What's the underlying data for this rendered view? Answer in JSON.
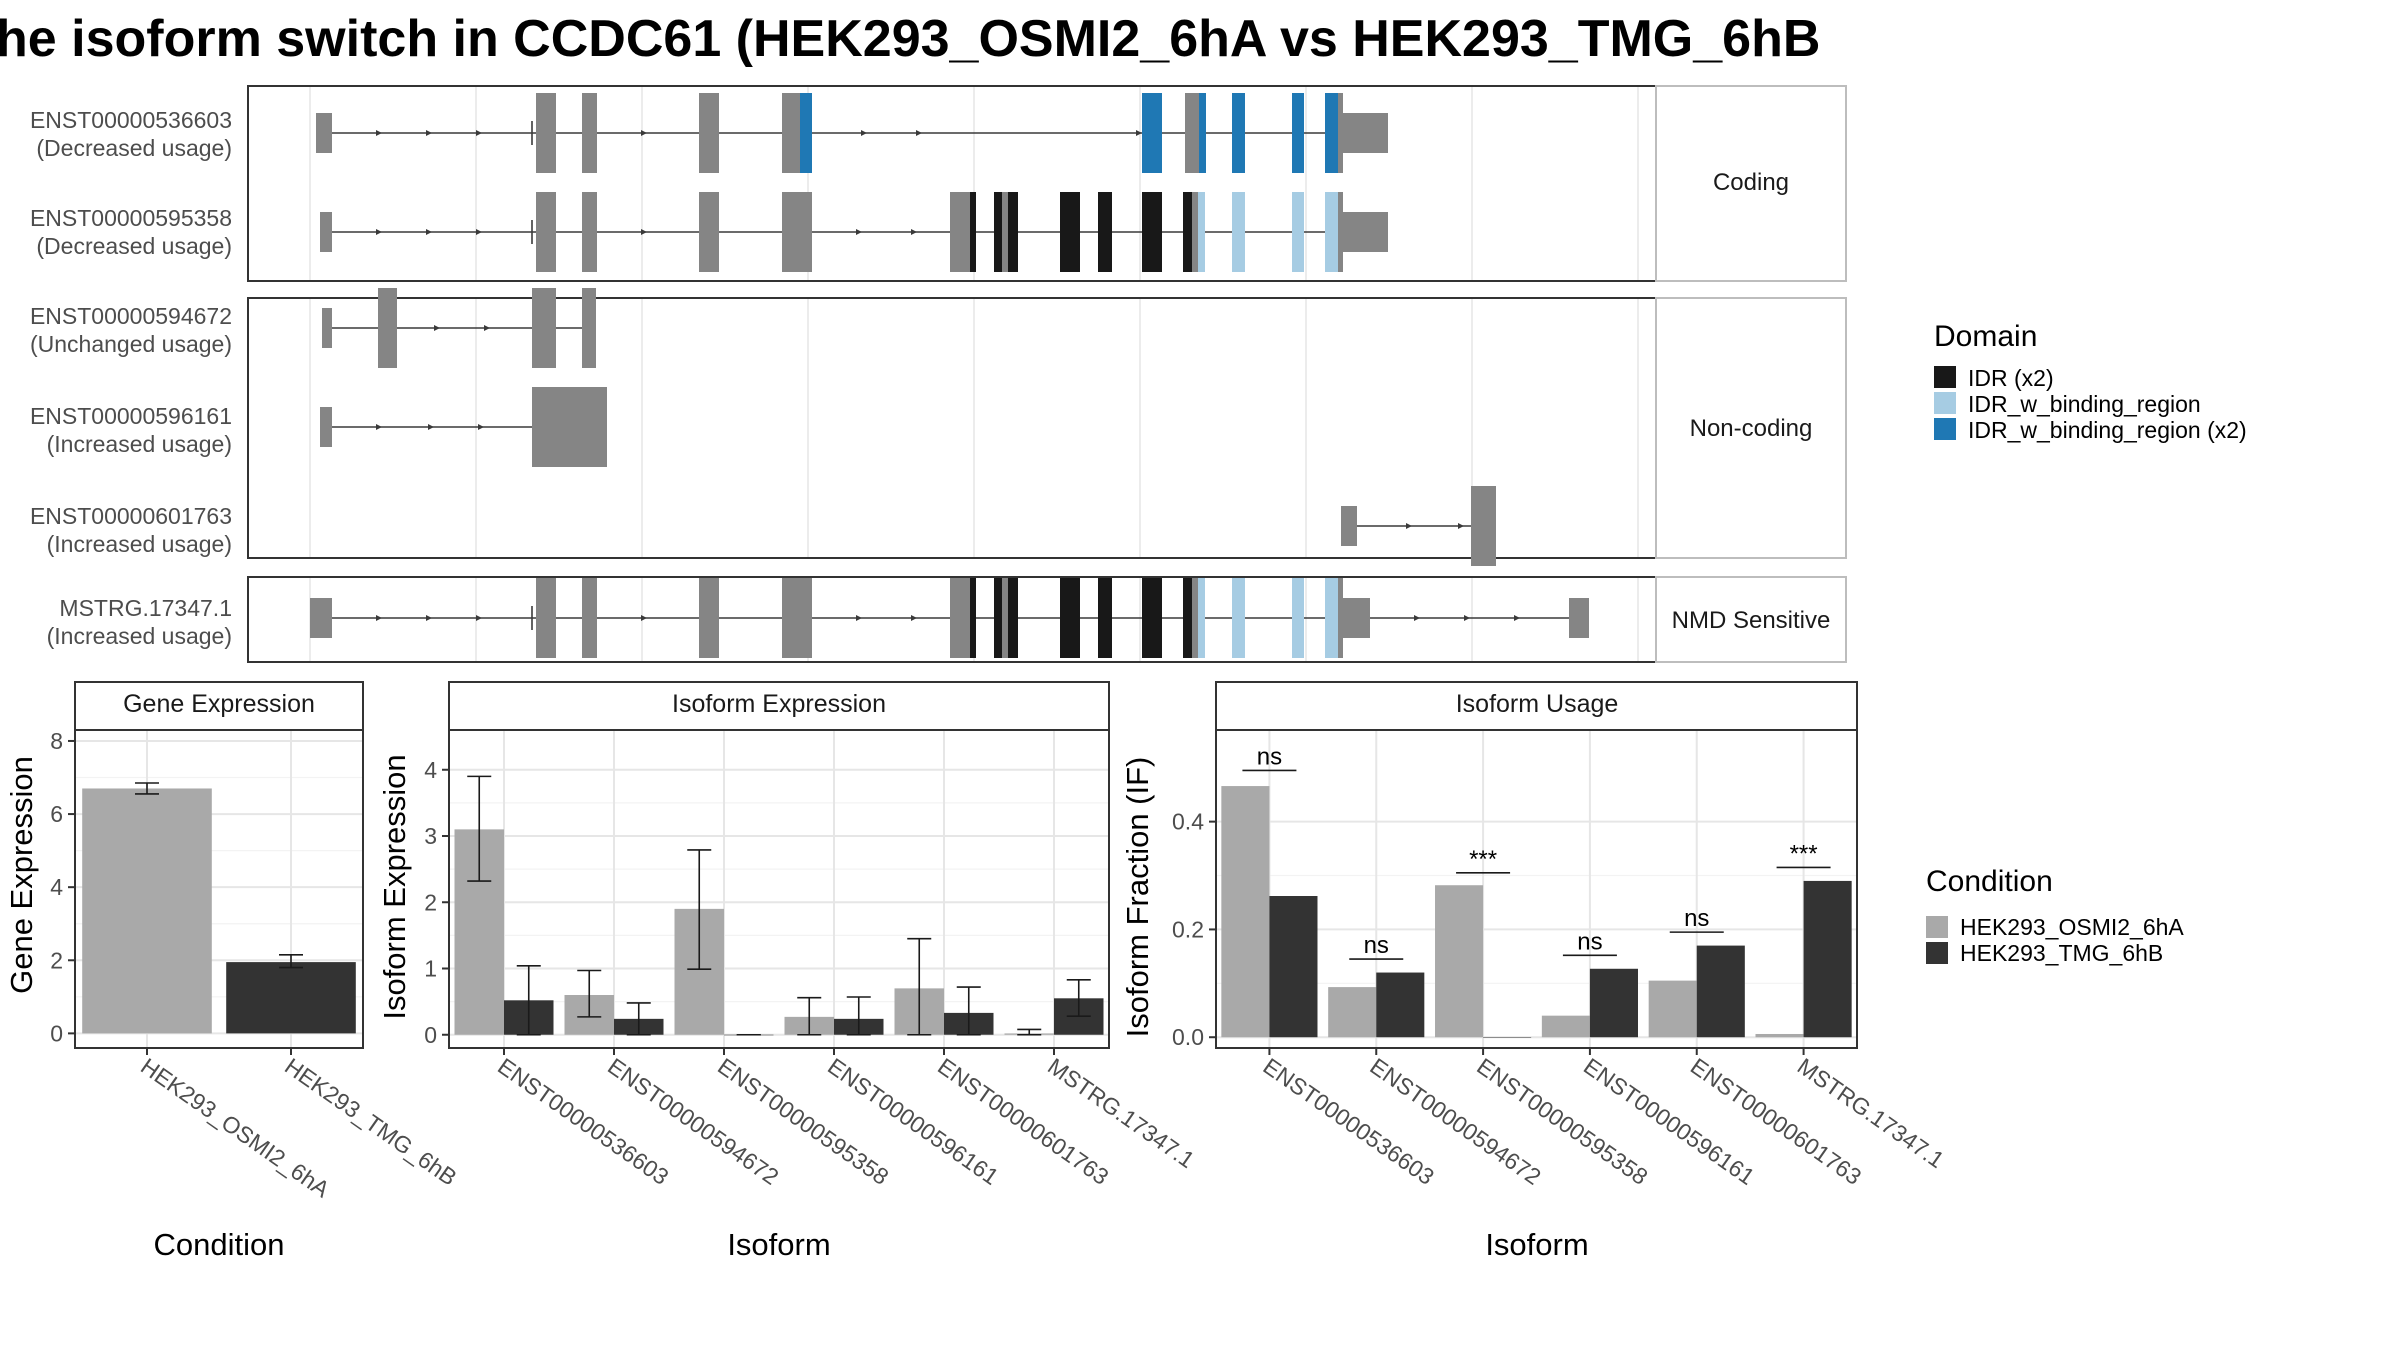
{
  "title": "he isoform switch in CCDC61 (HEK293_OSMI2_6hA vs HEK293_TMG_6hB",
  "colors": {
    "exon": "#858585",
    "idr": "#181818",
    "idr_w_binding_region": "#a6cce3",
    "idr_w_binding_region_x2": "#1f78b4",
    "cond_a": "#a9a9a9",
    "cond_b": "#333333"
  },
  "structure": {
    "sections": [
      {
        "label": "Coding",
        "transcripts": [
          {
            "id": "ENST00000536603",
            "usage": "(Decreased usage)"
          },
          {
            "id": "ENST00000595358",
            "usage": "(Decreased usage)"
          }
        ]
      },
      {
        "label": "Non-coding",
        "transcripts": [
          {
            "id": "ENST00000594672",
            "usage": "(Unchanged usage)"
          },
          {
            "id": "ENST00000596161",
            "usage": "(Increased usage)"
          },
          {
            "id": "ENST00000601763",
            "usage": "(Increased usage)"
          }
        ]
      },
      {
        "label": "NMD Sensitive",
        "transcripts": [
          {
            "id": "MSTRG.17347.1",
            "usage": "(Increased usage)"
          }
        ]
      }
    ]
  },
  "domain_legend": {
    "title": "Domain",
    "items": [
      {
        "label": "IDR (x2)",
        "color": "#181818"
      },
      {
        "label": "IDR_w_binding_region",
        "color": "#a6cce3"
      },
      {
        "label": "IDR_w_binding_region (x2)",
        "color": "#1f78b4"
      }
    ]
  },
  "condition_legend": {
    "title": "Condition",
    "items": [
      {
        "label": "HEK293_OSMI2_6hA",
        "color": "#a9a9a9"
      },
      {
        "label": "HEK293_TMG_6hB",
        "color": "#333333"
      }
    ]
  },
  "chart_data": [
    {
      "type": "bar",
      "title": "Gene Expression",
      "xlabel": "Condition",
      "ylabel": "Gene Expression",
      "categories": [
        "HEK293_OSMI2_6hA",
        "HEK293_TMG_6hB"
      ],
      "values": [
        6.7,
        1.95
      ],
      "errors": [
        [
          6.55,
          6.85
        ],
        [
          1.8,
          2.15
        ]
      ],
      "ylim": [
        -0.4,
        8.3
      ],
      "yticks": [
        0,
        2,
        4,
        6,
        8
      ],
      "grid": true
    },
    {
      "type": "bar",
      "title": "Isoform Expression",
      "xlabel": "Isoform",
      "ylabel": "Isoform Expression",
      "categories": [
        "ENST00000536603",
        "ENST00000594672",
        "ENST00000595358",
        "ENST00000596161",
        "ENST00000601763",
        "MSTRG.17347.1"
      ],
      "series": [
        {
          "name": "HEK293_OSMI2_6hA",
          "values": [
            3.1,
            0.6,
            1.9,
            0.27,
            0.7,
            0.02
          ],
          "errors": [
            [
              2.32,
              3.9
            ],
            [
              0.27,
              0.97
            ],
            [
              0.99,
              2.79
            ],
            [
              0.0,
              0.56
            ],
            [
              0.0,
              1.45
            ],
            [
              0.0,
              0.08
            ]
          ]
        },
        {
          "name": "HEK293_TMG_6hB",
          "values": [
            0.52,
            0.24,
            0.0,
            0.24,
            0.33,
            0.55
          ],
          "errors": [
            [
              0.0,
              1.04
            ],
            [
              0.0,
              0.48
            ],
            [
              0.0,
              0.0
            ],
            [
              0.0,
              0.57
            ],
            [
              0.0,
              0.72
            ],
            [
              0.28,
              0.83
            ]
          ]
        }
      ],
      "ylim": [
        -0.2,
        4.6
      ],
      "yticks": [
        0,
        1,
        2,
        3,
        4
      ],
      "grid": true
    },
    {
      "type": "bar",
      "title": "Isoform Usage",
      "xlabel": "Isoform",
      "ylabel": "Isoform Fraction (IF)",
      "categories": [
        "ENST00000536603",
        "ENST00000594672",
        "ENST00000595358",
        "ENST00000596161",
        "ENST00000601763",
        "MSTRG.17347.1"
      ],
      "series": [
        {
          "name": "HEK293_OSMI2_6hA",
          "values": [
            0.466,
            0.093,
            0.282,
            0.04,
            0.105,
            0.006
          ]
        },
        {
          "name": "HEK293_TMG_6hB",
          "values": [
            0.262,
            0.12,
            0.0,
            0.127,
            0.17,
            0.29
          ]
        }
      ],
      "significance": [
        "ns",
        "ns",
        "***",
        "ns",
        "ns",
        "***"
      ],
      "significance_y": [
        0.495,
        0.145,
        0.305,
        0.152,
        0.195,
        0.315
      ],
      "ylim": [
        -0.02,
        0.57
      ],
      "yticks": [
        0.0,
        0.2,
        0.4
      ],
      "ytick_labels": [
        "0.0",
        "0.2",
        "0.4"
      ],
      "grid": true
    }
  ]
}
